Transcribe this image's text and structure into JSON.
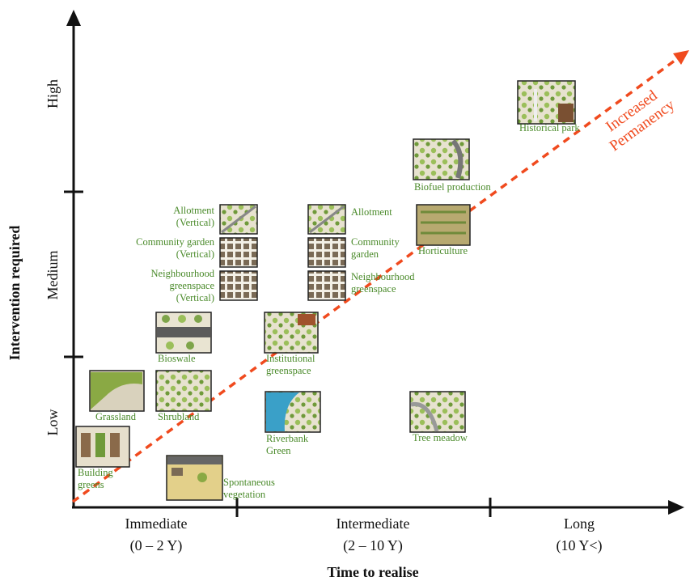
{
  "colors": {
    "axis": "#111111",
    "label_green": "#4a8a2a",
    "arrow_red": "#f04a1e",
    "thumb_border": "#222222"
  },
  "y_axis": {
    "title": "Intervention required",
    "levels": [
      "Low",
      "Medium",
      "High"
    ]
  },
  "x_axis": {
    "title": "Time to realise",
    "periods": [
      {
        "name": "Immediate",
        "range": "(0 – 2 Y)"
      },
      {
        "name": "Intermediate",
        "range": "(2 – 10 Y)"
      },
      {
        "name": "Long",
        "range": "(10 Y<)"
      }
    ]
  },
  "trend_label": [
    "Increased",
    "Permanency"
  ],
  "items": {
    "allotment_vertical": [
      "Allotment",
      "(Vertical)"
    ],
    "community_garden_vertical": [
      "Community garden",
      "(Vertical)"
    ],
    "neighbourhood_vertical": [
      "Neighbourhood",
      "greenspace",
      "(Vertical)"
    ],
    "allotment": [
      "Allotment"
    ],
    "community_garden": [
      "Community",
      "garden"
    ],
    "neighbourhood": [
      "Neighbourhood",
      "greenspace"
    ],
    "bioswale": [
      "Bioswale"
    ],
    "institutional": [
      "Institutional",
      "greenspace"
    ],
    "grassland": [
      "Grassland"
    ],
    "shrubland": [
      "Shrubland"
    ],
    "riverbank": [
      "Riverbank",
      "Green"
    ],
    "tree_meadow": [
      "Tree meadow"
    ],
    "building_greens": [
      "Building",
      "greens"
    ],
    "spontaneous": [
      "Spontaneous",
      "vegetation"
    ],
    "horticulture": [
      "Horticulture"
    ],
    "biofuel": [
      "Biofuel production"
    ],
    "historical_park": [
      "Historical park"
    ]
  }
}
